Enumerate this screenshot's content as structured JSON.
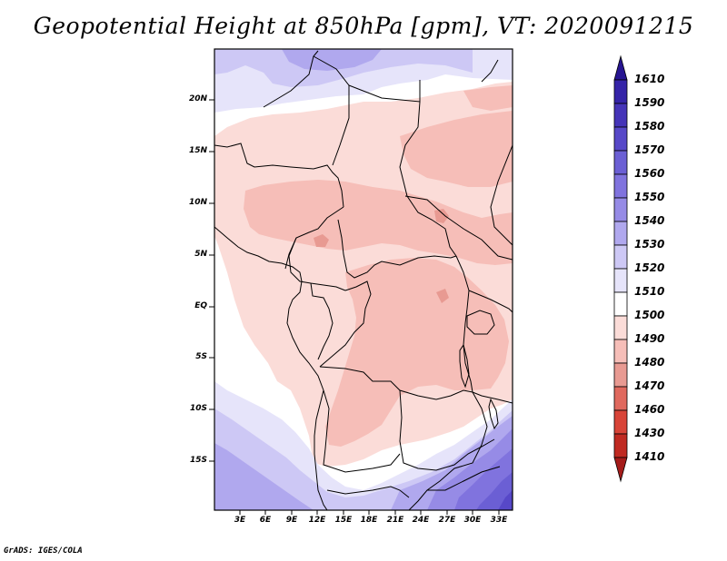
{
  "title": "Geopotential Height at 850hPa [gpm], VT: 2020091215",
  "credit": "GrADS: IGES/COLA",
  "lat_labels": [
    "20N",
    "15N",
    "10N",
    "5N",
    "EQ",
    "5S",
    "10S",
    "15S"
  ],
  "lon_labels": [
    "3E",
    "6E",
    "9E",
    "12E",
    "15E",
    "18E",
    "21E",
    "24E",
    "27E",
    "30E",
    "33E"
  ],
  "colorbar": {
    "levels": [
      "1610",
      "1590",
      "1580",
      "1570",
      "1560",
      "1550",
      "1540",
      "1530",
      "1520",
      "1510",
      "1500",
      "1490",
      "1480",
      "1470",
      "1460",
      "1430",
      "1410"
    ],
    "colors": [
      "#271591",
      "#3524a8",
      "#4534b8",
      "#5748c8",
      "#6b5fd4",
      "#8073de",
      "#968be6",
      "#b0a8ee",
      "#cdc8f5",
      "#e6e4fa",
      "#ffffff",
      "#fbdcd8",
      "#f6beb8",
      "#e89a92",
      "#e0695e",
      "#d84438",
      "#c02a22",
      "#a51c1a"
    ]
  },
  "map": {
    "lon_range": [
      0,
      34.5
    ],
    "lat_range": [
      -19.5,
      24.5
    ],
    "field": "Geopotential Height at 850hPa",
    "units": "gpm"
  }
}
